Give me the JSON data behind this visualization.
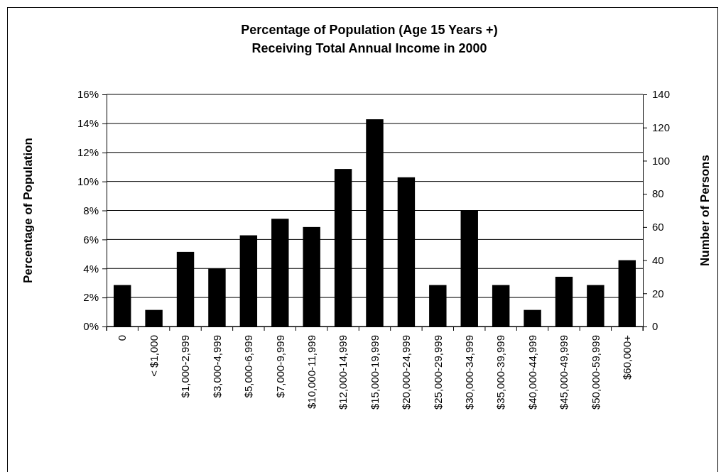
{
  "chart_data": {
    "type": "bar",
    "title": "Percentage of Population (Age 15 Years +)\nReceiving Total Annual Income in 2000",
    "ylabel": "Percentage of Population",
    "y2label": "Number of Persons",
    "categories": [
      "0",
      "< $1,000",
      "$1,000-2,999",
      "$3,000-4,999",
      "$5,000-6,999",
      "$7,000-9,999",
      "$10,000-11,999",
      "$12,000-14,999",
      "$15,000-19,999",
      "$20,000-24,999",
      "$25,000-29,999",
      "$30,000-34,999",
      "$35,000-39,999",
      "$40,000-44,999",
      "$45,000-49,999",
      "$50,000-59,999",
      "$60,000+"
    ],
    "series": [
      {
        "color": "#000000",
        "axis": "y2",
        "values": [
          25,
          10,
          45,
          35,
          55,
          65,
          60,
          95,
          125,
          90,
          25,
          70,
          25,
          10,
          30,
          25,
          40
        ]
      }
    ],
    "ylim": [
      0,
      16
    ],
    "yticks": [
      {
        "value": 0,
        "label": "0%"
      },
      {
        "value": 2,
        "label": "2%"
      },
      {
        "value": 4,
        "label": "4%"
      },
      {
        "value": 6,
        "label": "6%"
      },
      {
        "value": 8,
        "label": "8%"
      },
      {
        "value": 10,
        "label": "10%"
      },
      {
        "value": 12,
        "label": "12%"
      },
      {
        "value": 14,
        "label": "14%"
      },
      {
        "value": 16,
        "label": "16%"
      }
    ],
    "y2lim": [
      0,
      140
    ],
    "y2ticks": [
      0,
      20,
      40,
      60,
      80,
      100,
      120,
      140
    ],
    "grid": "y"
  }
}
